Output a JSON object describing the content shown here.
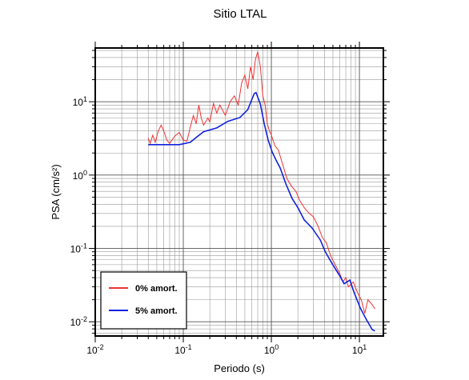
{
  "chart_data": {
    "type": "line",
    "title": "Sitio LTAL",
    "x_label": "Periodo (s)",
    "y_label": "PSA (cm/s²)",
    "x_log": true,
    "y_log": true,
    "grid": true,
    "minor_grid": true,
    "legend_position": "lower left",
    "xlim": [
      0.01,
      18.7
    ],
    "ylim": [
      0.0064,
      54
    ],
    "xticks": [
      {
        "value": 0.01,
        "label": "10",
        "exponent": "-2"
      },
      {
        "value": 0.1,
        "label": "10",
        "exponent": "-1"
      },
      {
        "value": 1,
        "label": "10",
        "exponent": "0"
      },
      {
        "value": 10,
        "label": "10",
        "exponent": "1"
      }
    ],
    "yticks": [
      {
        "value": 0.01,
        "label": "10",
        "exponent": "-2"
      },
      {
        "value": 0.1,
        "label": "10",
        "exponent": "-1"
      },
      {
        "value": 1,
        "label": "10",
        "exponent": "0"
      },
      {
        "value": 10,
        "label": "10",
        "exponent": "1"
      }
    ],
    "series": [
      {
        "name": "0% amort.",
        "color": "#ee3333",
        "x": [
          0.04,
          0.042,
          0.045,
          0.048,
          0.052,
          0.056,
          0.06,
          0.065,
          0.07,
          0.08,
          0.09,
          0.1,
          0.11,
          0.12,
          0.13,
          0.14,
          0.15,
          0.16,
          0.17,
          0.19,
          0.2,
          0.22,
          0.24,
          0.26,
          0.3,
          0.34,
          0.38,
          0.42,
          0.46,
          0.5,
          0.54,
          0.58,
          0.62,
          0.66,
          0.7,
          0.75,
          0.8,
          0.85,
          0.9,
          0.95,
          1.0,
          1.1,
          1.2,
          1.3,
          1.5,
          1.7,
          1.9,
          2.1,
          2.4,
          2.7,
          3.0,
          3.4,
          3.8,
          4.2,
          4.7,
          5.3,
          6.0,
          6.5,
          7.0,
          7.5,
          8.5,
          9.5,
          10.5,
          11.5,
          12.5,
          14,
          15
        ],
        "values": [
          3.2,
          2.7,
          3.5,
          2.8,
          4,
          4.8,
          4,
          3,
          2.7,
          3.4,
          3.8,
          3.0,
          2.9,
          4.5,
          6.5,
          5,
          9,
          6,
          4.8,
          6,
          5.3,
          9.5,
          7,
          9,
          6.5,
          10,
          12,
          9,
          18,
          23,
          15,
          30,
          20,
          38,
          48,
          30,
          12,
          9,
          5,
          4,
          3.5,
          2.5,
          2.2,
          1.6,
          0.9,
          0.7,
          0.6,
          0.45,
          0.35,
          0.3,
          0.27,
          0.2,
          0.14,
          0.12,
          0.08,
          0.06,
          0.045,
          0.035,
          0.04,
          0.03,
          0.035,
          0.025,
          0.02,
          0.013,
          0.02,
          0.017,
          0.015
        ]
      },
      {
        "name": "5% amort.",
        "color": "#1122dd",
        "x": [
          0.04,
          0.06,
          0.09,
          0.12,
          0.14,
          0.17,
          0.24,
          0.32,
          0.44,
          0.54,
          0.64,
          0.67,
          0.75,
          0.83,
          0.92,
          1.02,
          1.13,
          1.26,
          1.46,
          1.72,
          2.0,
          2.36,
          2.9,
          3.6,
          4.1,
          4.9,
          6.0,
          6.7,
          7.8,
          8.6,
          10.2,
          12,
          14,
          15
        ],
        "values": [
          2.6,
          2.6,
          2.6,
          2.8,
          3.25,
          3.9,
          4.4,
          5.4,
          6.1,
          7.8,
          13,
          13.3,
          9.3,
          5,
          3,
          2.07,
          1.6,
          1.25,
          0.76,
          0.48,
          0.36,
          0.245,
          0.19,
          0.13,
          0.09,
          0.062,
          0.042,
          0.033,
          0.037,
          0.026,
          0.0155,
          0.0107,
          0.0078,
          0.0075
        ]
      }
    ]
  }
}
